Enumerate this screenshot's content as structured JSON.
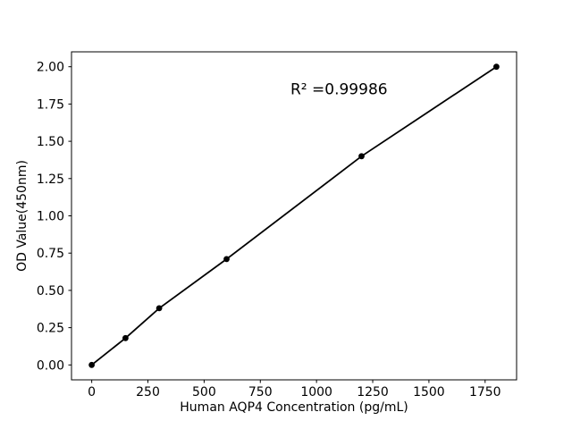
{
  "chart_data": {
    "type": "line",
    "title": "",
    "xlabel": "Human AQP4 Concentration (pg/mL)",
    "ylabel": "OD Value(450nm)",
    "annotation": {
      "text": "R² =0.99986",
      "x": 1100,
      "y": 1.85
    },
    "x": [
      0,
      150,
      300,
      600,
      1200,
      1800
    ],
    "y": [
      0.0,
      0.18,
      0.38,
      0.71,
      1.4,
      2.0
    ],
    "xticks": [
      0,
      250,
      500,
      750,
      1000,
      1250,
      1500,
      1750
    ],
    "yticks": [
      "0.00",
      "0.25",
      "0.50",
      "0.75",
      "1.00",
      "1.25",
      "1.50",
      "1.75",
      "2.00"
    ],
    "xlim": [
      -90,
      1890
    ],
    "ylim": [
      -0.1,
      2.1
    ],
    "grid": false,
    "legend": null,
    "colors": {
      "line": "#000000",
      "marker": "#000000",
      "axis": "#000000",
      "background": "#ffffff"
    }
  }
}
